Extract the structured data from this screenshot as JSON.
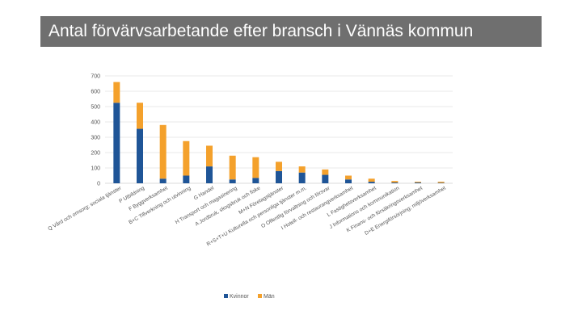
{
  "chart_data": {
    "type": "bar",
    "stacked": true,
    "title": "Antal förvärvsarbetande efter bransch i Vännäs kommun",
    "xlabel": "",
    "ylabel": "",
    "ylim": [
      0,
      700
    ],
    "yticks": [
      0,
      100,
      200,
      300,
      400,
      500,
      600,
      700
    ],
    "grid": true,
    "legend_position": "bottom",
    "categories": [
      "Q Vård och omsorg; sociala tjänster",
      "P Utbildning",
      "F Byggverksamhet",
      "B+C Tillverkning och utvinning",
      "G Handel",
      "H Transport och magasinering",
      "A Jordbruk, skogsbruk och fiske",
      "M+N Företagstjänster",
      "R+S+T+U Kulturella och personliga tjänster m.m.",
      "O Offentlig förvaltning och försvar",
      "I Hotell- och restaurangverksamhet",
      "L Fastighetsverksamhet",
      "J Informations och kommunikation",
      "K Finans- och försäkringsverksamhet",
      "D+E Energiförsörjning; miljöverksamhet"
    ],
    "series": [
      {
        "name": "Kvinnor",
        "color": "#1f5597",
        "values": [
          525,
          355,
          30,
          50,
          110,
          25,
          35,
          80,
          70,
          55,
          25,
          10,
          5,
          5,
          3
        ]
      },
      {
        "name": "Män",
        "color": "#f4a12c",
        "values": [
          135,
          170,
          350,
          225,
          135,
          155,
          135,
          60,
          40,
          35,
          25,
          20,
          10,
          5,
          7
        ]
      }
    ]
  },
  "colors": {
    "title_bar": "#6f6f6f",
    "title_text": "#ffffff",
    "grid": "#e3e3e3",
    "axis": "#cfcfcf",
    "label": "#555555"
  }
}
